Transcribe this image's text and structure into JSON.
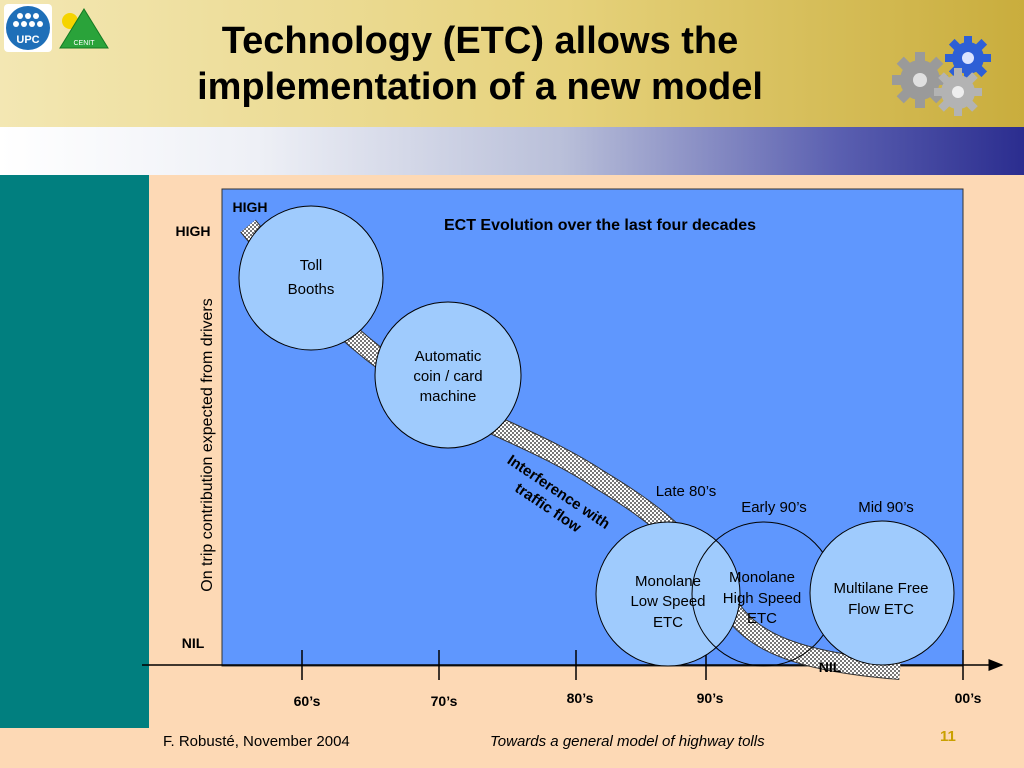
{
  "header": {
    "title_line1": "Technology (ETC) allows the",
    "title_line2": "implementation of a new model"
  },
  "logos": {
    "upc_text": "UPC",
    "cenit_text": "CENIT"
  },
  "diagram": {
    "title": "ECT Evolution over the last four decades",
    "y_axis_label": "On trip contribution expected from drivers",
    "y_high": "HIGH",
    "y_nil": "NIL",
    "inner_high": "HIGH",
    "inner_nil": "NIL",
    "band_label_line1": "Interference with",
    "band_label_line2": "traffic flow",
    "x_ticks": [
      "60’s",
      "70’s",
      "80’s",
      "90’s",
      "00’s"
    ],
    "period_labels": [
      "Late 80’s",
      "Early 90’s",
      "Mid 90’s"
    ],
    "nodes": [
      {
        "line1": "Toll",
        "line2": "Booths",
        "line3": ""
      },
      {
        "line1": "Automatic",
        "line2": "coin / card",
        "line3": "machine"
      },
      {
        "line1": "Monolane",
        "line2": "Low Speed",
        "line3": "ETC"
      },
      {
        "line1": "Monolane",
        "line2": "High Speed",
        "line3": "ETC"
      },
      {
        "line1": "Multilane Free",
        "line2": "Flow ETC",
        "line3": ""
      }
    ]
  },
  "footer": {
    "author": "F. Robusté, November 2004",
    "subject": "Towards a general model of highway tolls",
    "page": "11"
  },
  "colors": {
    "plot_bg": "#5f97fe",
    "node_fill": "#9fcbfd",
    "sidebar": "#017f7f",
    "page_bg": "#fdd9b5",
    "page_number": "#c9a000"
  }
}
